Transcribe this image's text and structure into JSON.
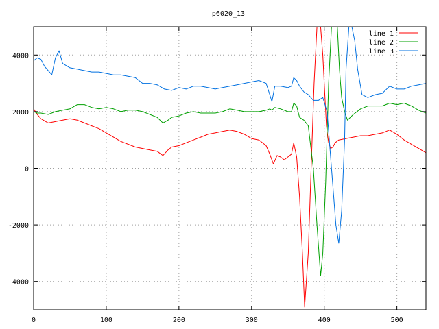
{
  "chart_data": {
    "type": "line",
    "title": "p6020_13",
    "xlabel": "",
    "ylabel": "",
    "xlim": [
      0,
      540
    ],
    "ylim": [
      -5000,
      5000
    ],
    "xticks": [
      0,
      100,
      200,
      300,
      400,
      500
    ],
    "yticks": [
      -4000,
      -2000,
      0,
      2000,
      4000
    ],
    "grid": true,
    "legend_position": "top-right",
    "series": [
      {
        "name": "line 1",
        "color": "#ff0000",
        "x": [
          0,
          5,
          10,
          20,
          30,
          40,
          50,
          60,
          70,
          80,
          90,
          100,
          110,
          120,
          130,
          140,
          150,
          160,
          170,
          178,
          185,
          190,
          200,
          210,
          220,
          230,
          240,
          250,
          260,
          270,
          280,
          290,
          300,
          310,
          320,
          325,
          330,
          335,
          340,
          345,
          350,
          355,
          358,
          362,
          366,
          370,
          373,
          378,
          382,
          386,
          390,
          392,
          395,
          398,
          400,
          403,
          406,
          409,
          412,
          415,
          420,
          430,
          440,
          450,
          460,
          470,
          480,
          490,
          500,
          510,
          520,
          530,
          540
        ],
        "y": [
          2100,
          1900,
          1750,
          1600,
          1650,
          1700,
          1750,
          1700,
          1600,
          1500,
          1400,
          1250,
          1100,
          950,
          850,
          750,
          700,
          650,
          600,
          450,
          650,
          750,
          800,
          900,
          1000,
          1100,
          1200,
          1250,
          1300,
          1350,
          1300,
          1200,
          1050,
          1000,
          800,
          500,
          150,
          450,
          400,
          300,
          400,
          500,
          900,
          400,
          -1000,
          -3000,
          -4900,
          -3000,
          0,
          3000,
          5000,
          5000,
          5000,
          4000,
          3000,
          1500,
          900,
          700,
          750,
          900,
          1000,
          1050,
          1100,
          1150,
          1150,
          1200,
          1250,
          1350,
          1200,
          1000,
          850,
          700,
          550
        ]
      },
      {
        "name": "line 2",
        "color": "#00a000",
        "x": [
          0,
          5,
          10,
          20,
          30,
          40,
          50,
          60,
          70,
          80,
          90,
          100,
          110,
          120,
          130,
          140,
          150,
          160,
          170,
          178,
          185,
          190,
          200,
          210,
          220,
          230,
          240,
          250,
          260,
          270,
          280,
          290,
          300,
          310,
          320,
          325,
          328,
          332,
          340,
          350,
          355,
          358,
          362,
          366,
          372,
          378,
          385,
          390,
          395,
          398,
          402,
          406,
          410,
          414,
          418,
          421,
          424,
          428,
          432,
          440,
          450,
          460,
          470,
          480,
          490,
          500,
          510,
          520,
          530,
          540
        ],
        "y": [
          2000,
          1950,
          1950,
          1900,
          2000,
          2050,
          2100,
          2250,
          2250,
          2150,
          2100,
          2150,
          2100,
          2000,
          2050,
          2050,
          2000,
          1900,
          1800,
          1600,
          1700,
          1800,
          1850,
          1950,
          2000,
          1950,
          1950,
          1950,
          2000,
          2100,
          2050,
          2000,
          2000,
          2000,
          2050,
          2100,
          2050,
          2150,
          2100,
          2000,
          2000,
          2300,
          2200,
          1800,
          1700,
          1500,
          0,
          -2000,
          -3800,
          -3000,
          -500,
          3000,
          5000,
          5000,
          5000,
          3500,
          2500,
          2000,
          1700,
          1900,
          2100,
          2200,
          2200,
          2200,
          2300,
          2250,
          2300,
          2200,
          2050,
          1950
        ]
      },
      {
        "name": "line 3",
        "color": "#0070e0",
        "x": [
          0,
          5,
          10,
          15,
          20,
          25,
          30,
          35,
          40,
          50,
          60,
          70,
          80,
          90,
          100,
          110,
          120,
          130,
          140,
          150,
          160,
          170,
          180,
          190,
          200,
          210,
          220,
          230,
          240,
          250,
          260,
          270,
          280,
          290,
          300,
          310,
          320,
          325,
          328,
          332,
          340,
          350,
          355,
          358,
          362,
          366,
          372,
          378,
          385,
          392,
          398,
          404,
          410,
          416,
          420,
          424,
          428,
          430,
          434,
          438,
          442,
          446,
          452,
          460,
          470,
          480,
          490,
          500,
          510,
          520,
          530,
          540
        ],
        "y": [
          3800,
          3900,
          3850,
          3600,
          3450,
          3300,
          3900,
          4150,
          3700,
          3550,
          3500,
          3450,
          3400,
          3400,
          3350,
          3300,
          3300,
          3250,
          3200,
          3000,
          3000,
          2950,
          2800,
          2750,
          2850,
          2800,
          2900,
          2900,
          2850,
          2800,
          2850,
          2900,
          2950,
          3000,
          3050,
          3100,
          3000,
          2600,
          2350,
          2900,
          2900,
          2850,
          2900,
          3200,
          3100,
          2900,
          2700,
          2600,
          2400,
          2400,
          2500,
          2000,
          0,
          -2000,
          -2650,
          -1500,
          1000,
          3500,
          5000,
          5000,
          4500,
          3500,
          2600,
          2500,
          2600,
          2650,
          2900,
          2800,
          2800,
          2900,
          2950,
          3000
        ]
      }
    ]
  }
}
